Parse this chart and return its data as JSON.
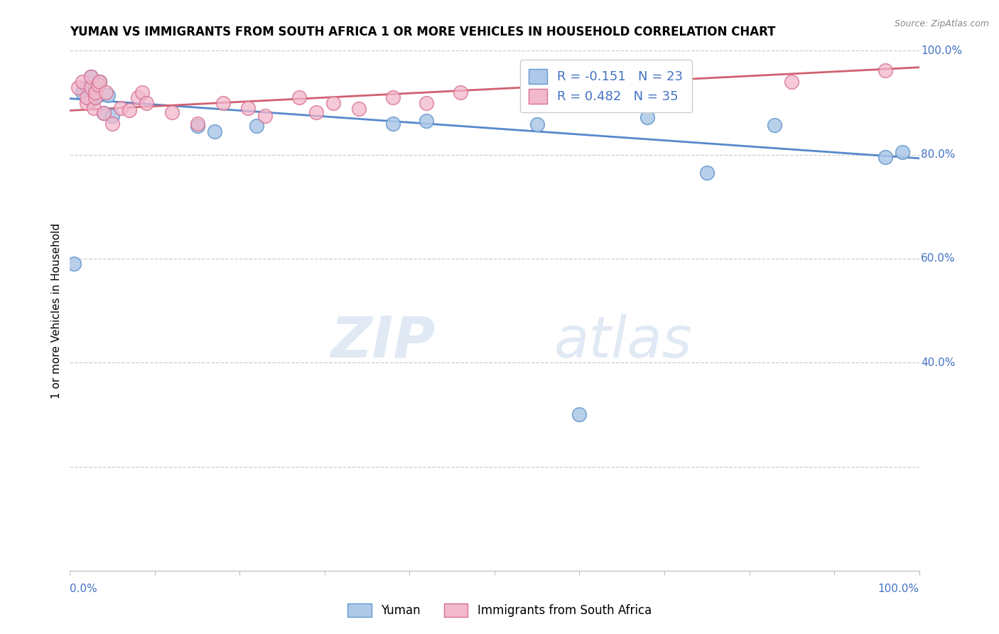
{
  "title": "YUMAN VS IMMIGRANTS FROM SOUTH AFRICA 1 OR MORE VEHICLES IN HOUSEHOLD CORRELATION CHART",
  "source": "Source: ZipAtlas.com",
  "ylabel": "1 or more Vehicles in Household",
  "blue_label": "Yuman",
  "pink_label": "Immigrants from South Africa",
  "blue_R": -0.151,
  "blue_N": 23,
  "pink_R": 0.482,
  "pink_N": 35,
  "blue_color": "#adc8e8",
  "blue_edge": "#6699cc",
  "pink_color": "#f2b8cc",
  "pink_edge": "#d87090",
  "blue_line_color": "#5588cc",
  "pink_line_color": "#d06070",
  "watermark_zip": "ZIP",
  "watermark_atlas": "atlas",
  "xlim": [
    0.0,
    1.0
  ],
  "ylim": [
    0.0,
    1.0
  ],
  "right_yticks": [
    1.0,
    0.8,
    0.6,
    0.4
  ],
  "right_ytick_labels": [
    "100.0%",
    "80.0%",
    "60.0%",
    "40.0%"
  ],
  "x_left_label": "0.0%",
  "x_right_label": "100.0%",
  "blue_x": [
    0.005,
    0.015,
    0.02,
    0.025,
    0.025,
    0.03,
    0.03,
    0.035,
    0.04,
    0.045,
    0.05,
    0.15,
    0.17,
    0.22,
    0.38,
    0.42,
    0.55,
    0.6,
    0.68,
    0.75,
    0.83,
    0.96,
    0.98
  ],
  "blue_y": [
    0.59,
    0.92,
    0.93,
    0.95,
    0.905,
    0.91,
    0.93,
    0.94,
    0.88,
    0.915,
    0.875,
    0.855,
    0.845,
    0.855,
    0.86,
    0.865,
    0.858,
    0.3,
    0.872,
    0.765,
    0.857,
    0.795,
    0.805
  ],
  "pink_x": [
    0.01,
    0.015,
    0.02,
    0.02,
    0.025,
    0.025,
    0.028,
    0.03,
    0.03,
    0.033,
    0.035,
    0.04,
    0.042,
    0.05,
    0.06,
    0.07,
    0.08,
    0.085,
    0.09,
    0.12,
    0.15,
    0.18,
    0.21,
    0.23,
    0.27,
    0.29,
    0.31,
    0.34,
    0.38,
    0.42,
    0.46,
    0.61,
    0.72,
    0.85,
    0.96
  ],
  "pink_y": [
    0.93,
    0.94,
    0.9,
    0.91,
    0.93,
    0.95,
    0.89,
    0.91,
    0.92,
    0.935,
    0.94,
    0.88,
    0.92,
    0.86,
    0.89,
    0.885,
    0.91,
    0.92,
    0.9,
    0.882,
    0.86,
    0.9,
    0.89,
    0.875,
    0.91,
    0.882,
    0.9,
    0.888,
    0.91,
    0.9,
    0.92,
    0.93,
    0.92,
    0.94,
    0.962
  ],
  "blue_trend_y_start": 0.908,
  "blue_trend_y_end": 0.793,
  "pink_trend_y_start": 0.885,
  "pink_trend_y_end": 0.968,
  "grid_yticks": [
    0.2,
    0.4,
    0.6,
    0.8,
    1.0
  ],
  "minor_xticks": [
    0.1,
    0.2,
    0.3,
    0.4,
    0.5,
    0.6,
    0.7,
    0.8,
    0.9
  ]
}
